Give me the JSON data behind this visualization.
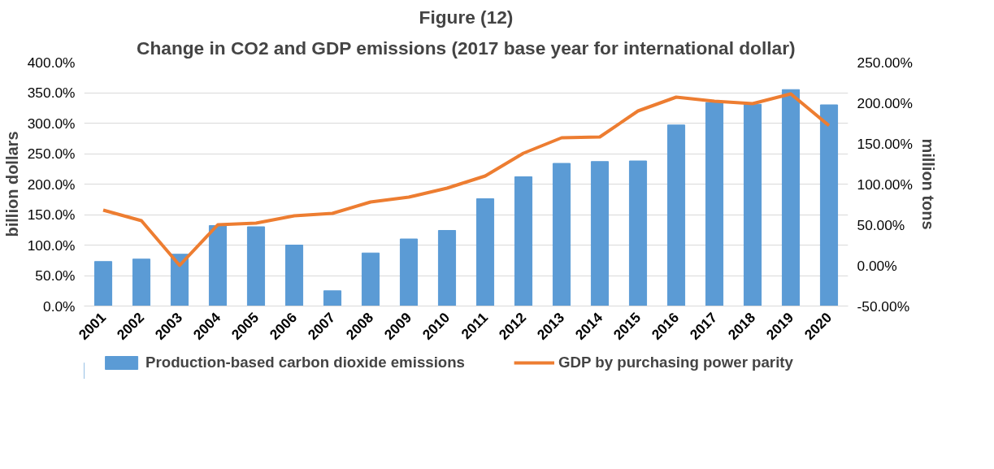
{
  "chart_data": {
    "type": "bar",
    "title": "Figure (12)",
    "subtitle": "Change in CO2 and GDP emissions (2017 base year for international dollar)",
    "ylabel": "billion dollars",
    "y2label": "million tons",
    "categories": [
      "2001",
      "2002",
      "2003",
      "2004",
      "2005",
      "2006",
      "2007",
      "2008",
      "2009",
      "2010",
      "2011",
      "2012",
      "2013",
      "2014",
      "2015",
      "2016",
      "2017",
      "2018",
      "2019",
      "2020"
    ],
    "series": [
      {
        "name": "Production-based carbon dioxide emissions",
        "type": "bar",
        "color": "#5b9bd5",
        "values": [
          73,
          77,
          85,
          132,
          130,
          100,
          25,
          87,
          110,
          124,
          176,
          212,
          234,
          237,
          238,
          297,
          334,
          331,
          355,
          330
        ]
      },
      {
        "name": "GDP by purchasing power parity",
        "type": "line",
        "axis": "y2",
        "color": "#ed7d31",
        "values": [
          68,
          55,
          0,
          50,
          52,
          61,
          64,
          78,
          84,
          95,
          110,
          138,
          157,
          158,
          190,
          207,
          202,
          199,
          211,
          172
        ]
      }
    ],
    "ylim": [
      0,
      400
    ],
    "yticks": [
      {
        "value": 0,
        "label": "0.0%"
      },
      {
        "value": 50,
        "label": "50.0%"
      },
      {
        "value": 100,
        "label": "100.0%"
      },
      {
        "value": 150,
        "label": "150.0%"
      },
      {
        "value": 200,
        "label": "200.0%"
      },
      {
        "value": 250,
        "label": "250.0%"
      },
      {
        "value": 300,
        "label": "300.0%"
      },
      {
        "value": 350,
        "label": "350.0%"
      },
      {
        "value": 400,
        "label": "400.0%"
      }
    ],
    "y2lim": [
      -50,
      250
    ],
    "y2ticks": [
      {
        "value": -50,
        "label": "-50.00%"
      },
      {
        "value": 0,
        "label": "0.00%"
      },
      {
        "value": 50,
        "label": "50.00%"
      },
      {
        "value": 100,
        "label": "100.00%"
      },
      {
        "value": 150,
        "label": "150.00%"
      },
      {
        "value": 200,
        "label": "200.00%"
      },
      {
        "value": 250,
        "label": "250.00%"
      }
    ],
    "grid": "y",
    "legend": "bottom",
    "marker": "none"
  }
}
